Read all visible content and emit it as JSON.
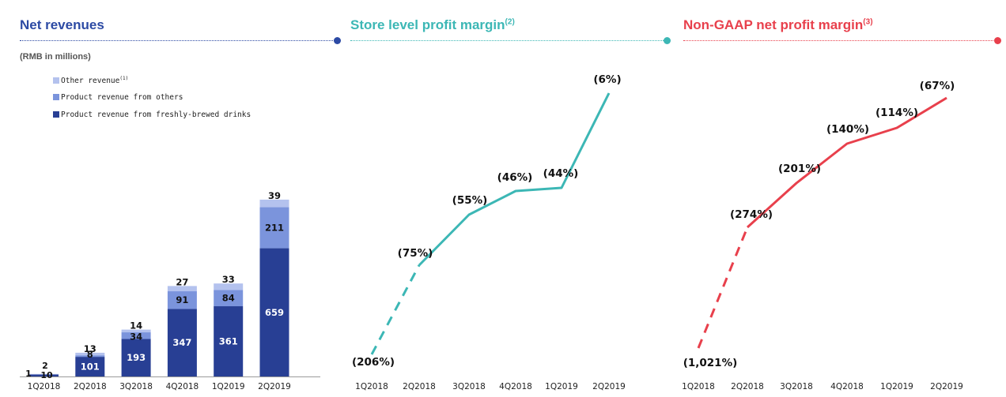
{
  "colors": {
    "fresh": "#283f94",
    "others": "#7b94dc",
    "other_rev": "#b4c2ee",
    "title_blue": "#2c4aa4",
    "teal": "#3cb7b5",
    "red": "#e8404c"
  },
  "chart_data": [
    {
      "type": "bar",
      "stacked": true,
      "title": "Net revenues",
      "subtitle": "(RMB in millions)",
      "categories": [
        "1Q2018",
        "2Q2018",
        "3Q2018",
        "4Q2018",
        "1Q2019",
        "2Q2019"
      ],
      "series": [
        {
          "name": "Product revenue from freshly-brewed drinks",
          "values": [
            10,
            101,
            193,
            347,
            361,
            659
          ]
        },
        {
          "name": "Product revenue from others",
          "values": [
            1,
            8,
            34,
            91,
            84,
            211
          ]
        },
        {
          "name": "Other revenue",
          "note": "(1)",
          "values": [
            2,
            13,
            14,
            27,
            33,
            39
          ]
        }
      ],
      "ylim": [
        0,
        960
      ]
    },
    {
      "type": "line",
      "title": "Store level profit margin",
      "title_note": "(2)",
      "categories": [
        "1Q2018",
        "2Q2018",
        "3Q2018",
        "4Q2018",
        "1Q2019",
        "2Q2019"
      ],
      "values": [
        -206,
        -75,
        -55,
        -46,
        -44,
        -6
      ],
      "labels": [
        "(206%)",
        "(75%)",
        "(55%)",
        "(46%)",
        "(44%)",
        "(6%)"
      ],
      "dashed_segments": [
        0
      ]
    },
    {
      "type": "line",
      "title": "Non-GAAP net profit margin",
      "title_note": "(3)",
      "categories": [
        "1Q2018",
        "2Q2018",
        "3Q2018",
        "4Q2018",
        "1Q2019",
        "2Q2019"
      ],
      "values": [
        -1021,
        -274,
        -201,
        -140,
        -114,
        -67
      ],
      "labels": [
        "(1,021%)",
        "(274%)",
        "(201%)",
        "(140%)",
        "(114%)",
        "(67%)"
      ],
      "dashed_segments": [
        0
      ]
    }
  ]
}
